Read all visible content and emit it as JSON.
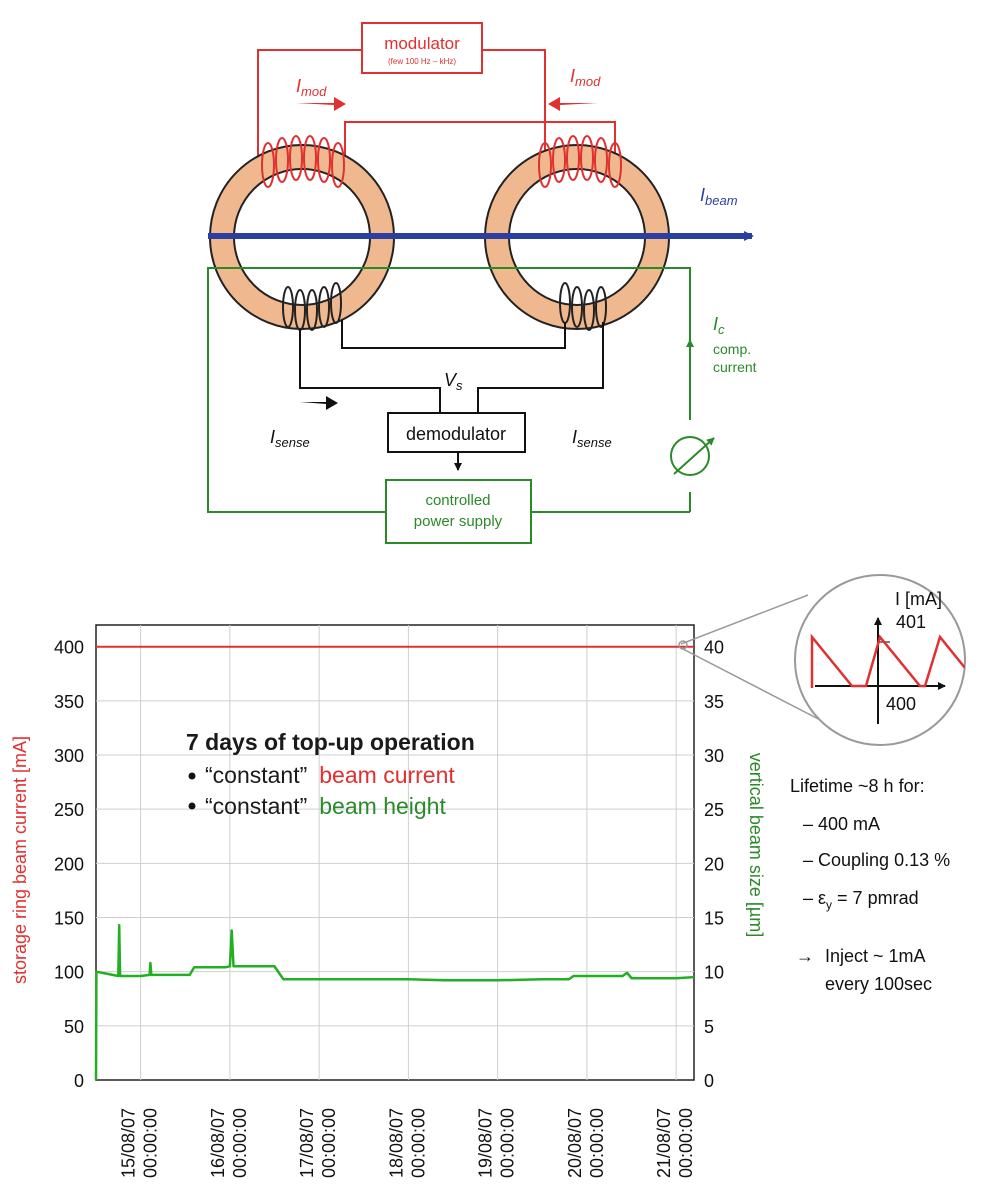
{
  "diagram": {
    "modulator_title": "modulator",
    "modulator_sub": "(few 100 Hz – kHz)",
    "imod_base": "I",
    "imod_sub": "mod",
    "ibeam_base": "I",
    "ibeam_sub": "beam",
    "ic_base": "I",
    "ic_sub": "c",
    "ic_note_1": "comp.",
    "ic_note_2": "current",
    "vs_base": "V",
    "vs_sub": "s",
    "isense_base": "I",
    "isense_sub": "sense",
    "demodulator_label": "demodulator",
    "power_supply_line1": "controlled",
    "power_supply_line2": "power supply",
    "colors": {
      "red": "#e03030",
      "green": "#2a8a2a",
      "blue": "#2b3fa0",
      "ring": "#f0b88e"
    }
  },
  "chart_data": {
    "type": "line",
    "left_ylabel": "storage ring beam current [mA]",
    "right_ylabel": "vertical beam size [µm]",
    "left_ylim": [
      0,
      420
    ],
    "right_ylim": [
      0,
      42
    ],
    "left_ticks": [
      "0",
      "50",
      "100",
      "150",
      "200",
      "250",
      "300",
      "350",
      "400"
    ],
    "right_ticks": [
      "0",
      "5",
      "10",
      "15",
      "20",
      "25",
      "30",
      "35",
      "40"
    ],
    "x_tick_dates": [
      "15/08/07",
      "16/08/07",
      "17/08/07",
      "18/08/07",
      "19/08/07",
      "20/08/07",
      "21/08/07"
    ],
    "x_tick_times": [
      "00:00:00",
      "00:00:00",
      "00:00:00",
      "00:00:00",
      "00:00:00",
      "00:00:00",
      "00:00:00"
    ],
    "x_range_days": [
      14.5,
      21.2
    ],
    "series": [
      {
        "name": "beam current",
        "axis": "left",
        "color": "#e03030",
        "points": [
          [
            14.5,
            400
          ],
          [
            21.2,
            400
          ]
        ]
      },
      {
        "name": "beam height",
        "axis": "right",
        "color": "#22b022",
        "points": [
          [
            14.5,
            0
          ],
          [
            14.505,
            10
          ],
          [
            14.75,
            9.6
          ],
          [
            14.76,
            14.3
          ],
          [
            14.77,
            9.6
          ],
          [
            15.0,
            9.6
          ],
          [
            15.1,
            9.7
          ],
          [
            15.11,
            10.8
          ],
          [
            15.12,
            9.7
          ],
          [
            15.55,
            9.7
          ],
          [
            15.6,
            10.4
          ],
          [
            15.95,
            10.4
          ],
          [
            16.0,
            10.5
          ],
          [
            16.02,
            13.8
          ],
          [
            16.04,
            10.5
          ],
          [
            16.5,
            10.5
          ],
          [
            16.6,
            9.3
          ],
          [
            17.0,
            9.3
          ],
          [
            18.0,
            9.3
          ],
          [
            18.4,
            9.2
          ],
          [
            19.0,
            9.2
          ],
          [
            19.5,
            9.3
          ],
          [
            19.8,
            9.3
          ],
          [
            19.85,
            9.6
          ],
          [
            20.4,
            9.6
          ],
          [
            20.45,
            9.9
          ],
          [
            20.5,
            9.4
          ],
          [
            21.0,
            9.4
          ],
          [
            21.2,
            9.5
          ]
        ]
      }
    ],
    "annotation_title": "7 days of top-up operation",
    "annotation_bullets": [
      {
        "prefix": "“constant”",
        "colored": "beam current",
        "color": "#e03030"
      },
      {
        "prefix": "“constant”",
        "colored": "beam height",
        "color": "#2a8a2a"
      }
    ]
  },
  "inset": {
    "ylabel": "I [mA]",
    "tick_top": "401",
    "tick_bottom": "400",
    "series": {
      "type": "sawtooth",
      "color": "#e03030"
    }
  },
  "notes": {
    "title": "Lifetime ~8 h for:",
    "item1": "– 400 mA",
    "item2": "– Coupling 0.13 %",
    "item3_prefix": "– ε",
    "item3_sub": "y",
    "item3_suffix": " = 7 pmrad",
    "inject_arrow": "→",
    "inject_line1": "Inject ~ 1mA",
    "inject_line2": "every 100sec"
  }
}
